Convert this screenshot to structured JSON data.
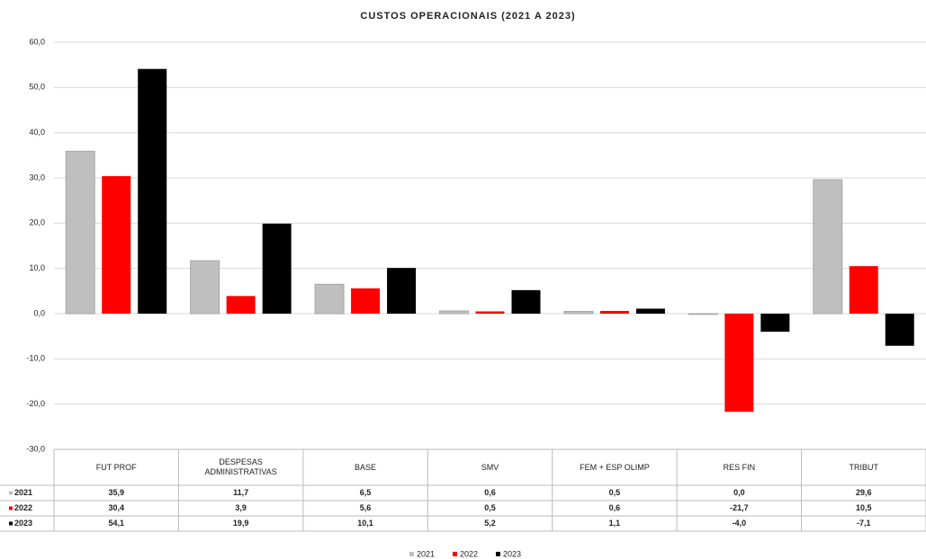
{
  "chart_data": {
    "type": "bar",
    "title": "CUSTOS OPERACIONAIS (2021 A 2023)",
    "categories": [
      "FUT PROF",
      "DESPESAS ADMINISTRATIVAS",
      "BASE",
      "SMV",
      "FEM + ESP OLIMP",
      "RES FIN",
      "TRIBUT"
    ],
    "series": [
      {
        "name": "2021",
        "color": "#bfbfbf",
        "values": [
          35.9,
          11.7,
          6.5,
          0.6,
          0.5,
          0.0,
          29.6
        ],
        "value_labels": [
          "35,9",
          "11,7",
          "6,5",
          "0,6",
          "0,5",
          "0,0",
          "29,6"
        ]
      },
      {
        "name": "2022",
        "color": "#ff0000",
        "values": [
          30.4,
          3.9,
          5.6,
          0.5,
          0.6,
          -21.7,
          10.5
        ],
        "value_labels": [
          "30,4",
          "3,9",
          "5,6",
          "0,5",
          "0,6",
          "-21,7",
          "10,5"
        ]
      },
      {
        "name": "2023",
        "color": "#000000",
        "values": [
          54.1,
          19.9,
          10.1,
          5.2,
          1.1,
          -4.0,
          -7.1
        ],
        "value_labels": [
          "54,1",
          "19,9",
          "10,1",
          "5,2",
          "1,1",
          "-4,0",
          "-7,1"
        ]
      }
    ],
    "ylim": [
      -30,
      60
    ],
    "yticks": [
      {
        "value": -30,
        "label": "-30,0"
      },
      {
        "value": -20,
        "label": "-20,0"
      },
      {
        "value": -10,
        "label": "-10,0"
      },
      {
        "value": 0,
        "label": "0,0"
      },
      {
        "value": 10,
        "label": "10,0"
      },
      {
        "value": 20,
        "label": "20,0"
      },
      {
        "value": 30,
        "label": "30,0"
      },
      {
        "value": 40,
        "label": "40,0"
      },
      {
        "value": 50,
        "label": "50,0"
      },
      {
        "value": 60,
        "label": "60,0"
      }
    ],
    "grid": true
  }
}
